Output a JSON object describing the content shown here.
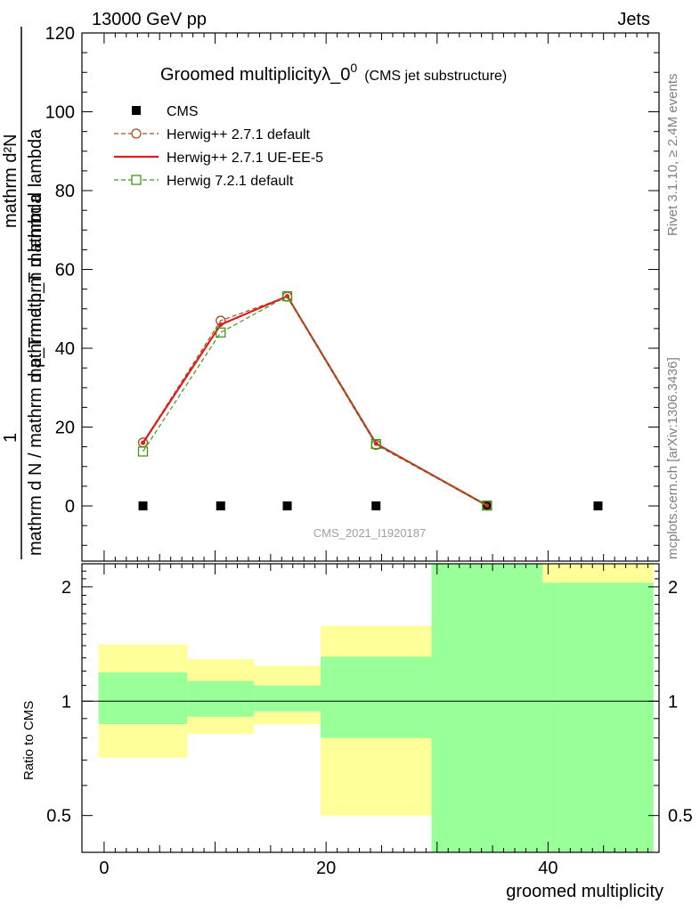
{
  "header": {
    "left": "13000 GeV pp",
    "right": "Jets"
  },
  "side": {
    "rivet": "Rivet 3.1.10, ≥ 2.4M events",
    "mcplots": "mcplots.cern.ch [arXiv:1306.3436]"
  },
  "chart_data": [
    {
      "type": "line",
      "title": "Groomed multiplicityλ_0",
      "title_sup": "0",
      "title_note": "(CMS jet substructure)",
      "watermark": "CMS_2021_I1920187",
      "ylabel_num": "1",
      "ylabel_den": "mathrm d N / mathrm d p_T mathrm d lambda",
      "ylabel_top": "mathrm d²N",
      "ylabel_top2": "mathrm d p_T mathrm d lambda",
      "ylim": [
        -14,
        120
      ],
      "yticks": [
        0,
        20,
        40,
        60,
        80,
        100,
        120
      ],
      "xlim": [
        -2,
        50
      ],
      "legend_position": "top-left",
      "series": [
        {
          "name": "CMS",
          "style": "data",
          "color": "#000000",
          "x": [
            3.5,
            10.5,
            16.5,
            24.5,
            34.5,
            44.5
          ],
          "y": [
            0,
            0,
            0,
            0,
            0,
            0
          ]
        },
        {
          "name": "Herwig++ 2.7.1 default",
          "style": "dashed-circle",
          "color": "#a0501e",
          "x": [
            3.5,
            10.5,
            16.5,
            24.5,
            34.5
          ],
          "y": [
            16.1,
            47.0,
            53.1,
            15.5,
            0.1
          ]
        },
        {
          "name": "Herwig++ 2.7.1 UE-EE-5",
          "style": "solid",
          "color": "#e41a1c",
          "x": [
            3.5,
            10.5,
            16.5,
            24.5,
            34.5
          ],
          "y": [
            16.0,
            46.0,
            53.2,
            15.8,
            0.1
          ]
        },
        {
          "name": "Herwig 7.2.1 default",
          "style": "dashed-square",
          "color": "#3a9a1a",
          "x": [
            3.5,
            10.5,
            16.5,
            24.5,
            34.5
          ],
          "y": [
            13.8,
            44.0,
            53.2,
            15.7,
            0.1
          ]
        }
      ]
    },
    {
      "type": "area",
      "ylabel": "Ratio to CMS",
      "xlabel": "groomed multiplicity",
      "ylim": [
        0.4,
        2.3
      ],
      "log_y": true,
      "yticks": [
        0.5,
        1,
        2
      ],
      "xlim": [
        -2,
        50
      ],
      "xticks": [
        0,
        20,
        40
      ],
      "reference_line": 1,
      "bins": [
        {
          "x_low": -0.5,
          "x_high": 7.5,
          "yellow": [
            0.71,
            1.41
          ],
          "green": [
            0.87,
            1.19
          ]
        },
        {
          "x_low": 7.5,
          "x_high": 13.5,
          "yellow": [
            0.82,
            1.29
          ],
          "green": [
            0.91,
            1.13
          ]
        },
        {
          "x_low": 13.5,
          "x_high": 19.5,
          "yellow": [
            0.87,
            1.24
          ],
          "green": [
            0.94,
            1.1
          ]
        },
        {
          "x_low": 19.5,
          "x_high": 29.5,
          "yellow": [
            0.5,
            1.58
          ],
          "green": [
            0.8,
            1.31
          ]
        },
        {
          "x_low": 29.5,
          "x_high": 39.5,
          "yellow": [
            0.4,
            2.3
          ],
          "green": [
            0.4,
            2.3
          ]
        },
        {
          "x_low": 39.5,
          "x_high": 49.5,
          "yellow": [
            0.4,
            2.3
          ],
          "green": [
            0.4,
            2.05
          ]
        }
      ],
      "colors": {
        "yellow": "#ffff99",
        "green": "#99ff99"
      }
    }
  ]
}
